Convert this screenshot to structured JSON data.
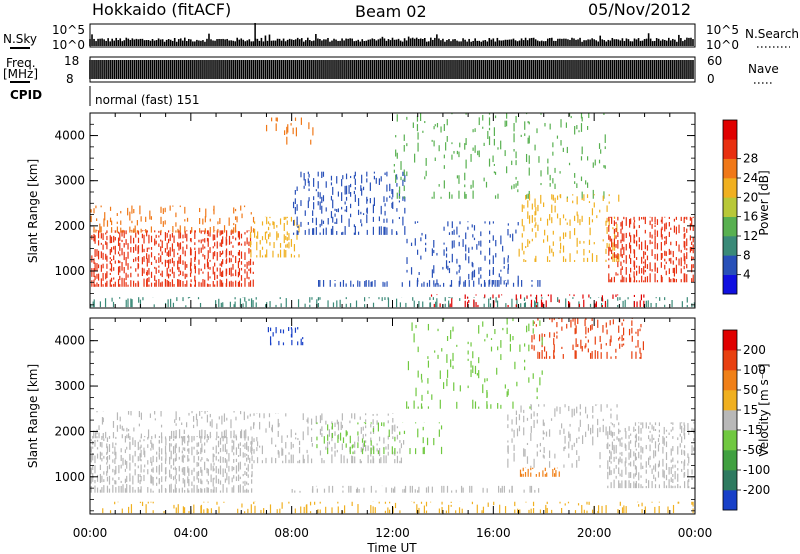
{
  "header": {
    "station": "Hokkaido (fitACF)",
    "beam": "Beam 02",
    "date": "05/Nov/2012"
  },
  "aux": {
    "nsky_label": "N.Sky",
    "nsearch_label": "N.Search",
    "freq_label_1": "Freq.",
    "freq_label_2": "[MHz]",
    "nave_label": "Nave",
    "cpid_label": "CPID",
    "cpid_text": "normal (fast) 151",
    "noise_ticks_left": [
      "10^5",
      "10^0"
    ],
    "noise_ticks_right": [
      "10^5",
      "10^0"
    ],
    "freq_ticks": [
      "18",
      "8"
    ],
    "nave_ticks": [
      "60",
      "0"
    ]
  },
  "chart_data": [
    {
      "type": "heatmap",
      "title": "",
      "xlabel": "Time UT",
      "ylabel": "Slant Range [km]",
      "x_ticks": [
        "00:00",
        "04:00",
        "08:00",
        "12:00",
        "16:00",
        "20:00",
        "00:00"
      ],
      "x_range_hours": [
        0,
        24
      ],
      "ylim": [
        180,
        4500
      ],
      "y_ticks": [
        1000,
        2000,
        3000,
        4000
      ],
      "colorbar": {
        "label": "Power [dB]",
        "ticks": [
          "4",
          "8",
          "12",
          "16",
          "20",
          "24",
          "28"
        ],
        "colors": [
          "#1010e0",
          "#2850b8",
          "#3a8a78",
          "#58b050",
          "#b8c838",
          "#f0b020",
          "#f07818",
          "#e83010",
          "#e00000"
        ]
      },
      "regions": [
        {
          "t0": 0.0,
          "t1": 6.5,
          "r0": 650,
          "r1": 1900,
          "color": "#e83010",
          "density": 0.9
        },
        {
          "t0": 0.0,
          "t1": 6.5,
          "r0": 1850,
          "r1": 2450,
          "color": "#f07818",
          "density": 0.45
        },
        {
          "t0": 0.0,
          "t1": 24.0,
          "r0": 200,
          "r1": 420,
          "color": "#3a8a78",
          "density": 0.35
        },
        {
          "t0": 6.3,
          "t1": 8.3,
          "r0": 1300,
          "r1": 2200,
          "color": "#f0b020",
          "density": 0.6
        },
        {
          "t0": 8.0,
          "t1": 12.5,
          "r0": 1800,
          "r1": 3200,
          "color": "#2850b8",
          "density": 0.45
        },
        {
          "t0": 12.5,
          "t1": 17.0,
          "r0": 700,
          "r1": 2100,
          "color": "#2850b8",
          "density": 0.3
        },
        {
          "t0": 9.0,
          "t1": 18.0,
          "r0": 650,
          "r1": 800,
          "color": "#2850b8",
          "density": 0.55
        },
        {
          "t0": 12.0,
          "t1": 20.5,
          "r0": 2600,
          "r1": 4500,
          "color": "#58b050",
          "density": 0.2
        },
        {
          "t0": 17.0,
          "t1": 21.0,
          "r0": 1200,
          "r1": 2700,
          "color": "#f0b020",
          "density": 0.35
        },
        {
          "t0": 20.5,
          "t1": 24.0,
          "r0": 750,
          "r1": 2200,
          "color": "#e83010",
          "density": 0.8
        },
        {
          "t0": 13.5,
          "t1": 22.0,
          "r0": 200,
          "r1": 480,
          "color": "#e00000",
          "density": 0.3
        },
        {
          "t0": 7.0,
          "t1": 9.0,
          "r0": 3800,
          "r1": 4400,
          "color": "#f07818",
          "density": 0.2
        }
      ]
    },
    {
      "type": "heatmap",
      "title": "",
      "xlabel": "Time UT",
      "ylabel": "Slant Range [km]",
      "x_ticks": [
        "00:00",
        "04:00",
        "08:00",
        "12:00",
        "16:00",
        "20:00",
        "00:00"
      ],
      "x_range_hours": [
        0,
        24
      ],
      "ylim": [
        180,
        4500
      ],
      "y_ticks": [
        1000,
        2000,
        3000,
        4000
      ],
      "colorbar": {
        "label": "Velocity [m s⁻¹]",
        "ticks": [
          "200",
          "100",
          "50",
          "15",
          "-15",
          "-50",
          "-100",
          "-200"
        ],
        "colors": [
          "#1840c8",
          "#2e7a60",
          "#40a040",
          "#70c840",
          "#b8b8b8",
          "#f0b020",
          "#f08018",
          "#e84010",
          "#e00000"
        ]
      },
      "regions": [
        {
          "t0": 0.0,
          "t1": 6.5,
          "r0": 650,
          "r1": 1900,
          "color": "#b8b8b8",
          "density": 0.85
        },
        {
          "t0": 0.0,
          "t1": 6.5,
          "r0": 1850,
          "r1": 2450,
          "color": "#b8b8b8",
          "density": 0.4
        },
        {
          "t0": 6.3,
          "t1": 12.5,
          "r0": 1300,
          "r1": 2400,
          "color": "#b8b8b8",
          "density": 0.4
        },
        {
          "t0": 9.0,
          "t1": 14.0,
          "r0": 1500,
          "r1": 2200,
          "color": "#70c840",
          "density": 0.3
        },
        {
          "t0": 8.0,
          "t1": 18.0,
          "r0": 650,
          "r1": 800,
          "color": "#b8b8b8",
          "density": 0.5
        },
        {
          "t0": 0.0,
          "t1": 24.0,
          "r0": 200,
          "r1": 450,
          "color": "#f0b020",
          "density": 0.35
        },
        {
          "t0": 17.0,
          "t1": 18.7,
          "r0": 1000,
          "r1": 1200,
          "color": "#f08018",
          "density": 0.6
        },
        {
          "t0": 17.5,
          "t1": 22.0,
          "r0": 3600,
          "r1": 4500,
          "color": "#e84010",
          "density": 0.4
        },
        {
          "t0": 20.5,
          "t1": 24.0,
          "r0": 750,
          "r1": 2200,
          "color": "#b8b8b8",
          "density": 0.75
        },
        {
          "t0": 7.0,
          "t1": 8.5,
          "r0": 3900,
          "r1": 4300,
          "color": "#1840c8",
          "density": 0.5
        },
        {
          "t0": 12.5,
          "t1": 18.0,
          "r0": 2500,
          "r1": 4500,
          "color": "#70c840",
          "density": 0.15
        },
        {
          "t0": 16.5,
          "t1": 21.0,
          "r0": 1200,
          "r1": 2600,
          "color": "#b8b8b8",
          "density": 0.35
        }
      ]
    }
  ]
}
